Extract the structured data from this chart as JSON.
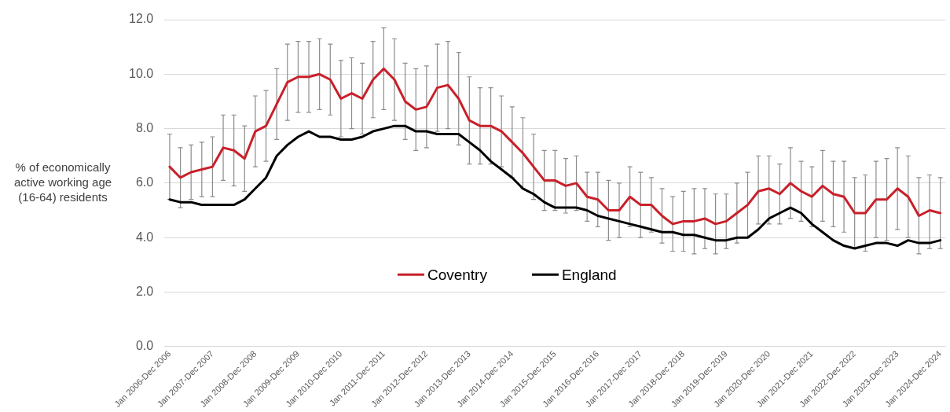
{
  "chart_data": {
    "type": "line",
    "ylabel": "% of economically active working age (16-64) residents",
    "categories": [
      "Jan 2006-Dec 2006",
      null,
      null,
      null,
      "Jan 2007-Dec 2007",
      null,
      null,
      null,
      "Jan 2008-Dec 2008",
      null,
      null,
      null,
      "Jan 2009-Dec 2009",
      null,
      null,
      null,
      "Jan 2010-Dec 2010",
      null,
      null,
      null,
      "Jan 2011-Dec 2011",
      null,
      null,
      null,
      "Jan 2012-Dec 2012",
      null,
      null,
      null,
      "Jan 2013-Dec 2013",
      null,
      null,
      null,
      "Jan 2014-Dec 2014",
      null,
      null,
      null,
      "Jan 2015-Dec 2015",
      null,
      null,
      null,
      "Jan 2016-Dec 2016",
      null,
      null,
      null,
      "Jan 2017-Dec 2017",
      null,
      null,
      null,
      "Jan 2018-Dec 2018",
      null,
      null,
      null,
      "Jan 2019-Dec 2019",
      null,
      null,
      null,
      "Jan 2020-Dec 2020",
      null,
      null,
      null,
      "Jan 2021-Dec 2021",
      null,
      null,
      null,
      "Jan 2022-Dec 2022",
      null,
      null,
      null,
      "Jan 2023-Dec 2023",
      null,
      null,
      null,
      "Jan 2024-Dec 2024"
    ],
    "series": [
      {
        "name": "Coventry",
        "color": "#c8202a",
        "values": [
          6.6,
          6.2,
          6.4,
          6.5,
          6.6,
          7.3,
          7.2,
          6.9,
          7.9,
          8.1,
          8.9,
          9.7,
          9.9,
          9.9,
          10.0,
          9.8,
          9.1,
          9.3,
          9.1,
          9.8,
          10.2,
          9.8,
          9.0,
          8.7,
          8.8,
          9.5,
          9.6,
          9.1,
          8.3,
          8.1,
          8.1,
          7.9,
          7.5,
          7.1,
          6.6,
          6.1,
          6.1,
          5.9,
          6.0,
          5.5,
          5.4,
          5.0,
          5.0,
          5.5,
          5.2,
          5.2,
          4.8,
          4.5,
          4.6,
          4.6,
          4.7,
          4.5,
          4.6,
          4.9,
          5.2,
          5.7,
          5.8,
          5.6,
          6.0,
          5.7,
          5.5,
          5.9,
          5.6,
          5.5,
          4.9,
          4.9,
          5.4,
          5.4,
          5.8,
          5.5,
          4.8,
          5.0,
          4.9
        ],
        "errors": [
          [
            5.4,
            7.8
          ],
          [
            5.1,
            7.3
          ],
          [
            5.4,
            7.4
          ],
          [
            5.5,
            7.5
          ],
          [
            5.5,
            7.7
          ],
          [
            6.1,
            8.5
          ],
          [
            5.9,
            8.5
          ],
          [
            5.7,
            8.1
          ],
          [
            6.6,
            9.2
          ],
          [
            6.8,
            9.4
          ],
          [
            7.6,
            10.2
          ],
          [
            8.3,
            11.1
          ],
          [
            8.6,
            11.2
          ],
          [
            8.6,
            11.2
          ],
          [
            8.7,
            11.3
          ],
          [
            8.5,
            11.1
          ],
          [
            7.7,
            10.5
          ],
          [
            8.0,
            10.6
          ],
          [
            7.8,
            10.4
          ],
          [
            8.4,
            11.2
          ],
          [
            8.7,
            11.7
          ],
          [
            8.3,
            11.3
          ],
          [
            7.6,
            10.4
          ],
          [
            7.2,
            10.2
          ],
          [
            7.3,
            10.3
          ],
          [
            7.9,
            11.1
          ],
          [
            8.0,
            11.2
          ],
          [
            7.4,
            10.8
          ],
          [
            6.7,
            9.9
          ],
          [
            6.7,
            9.5
          ],
          [
            6.7,
            9.5
          ],
          [
            6.6,
            9.2
          ],
          [
            6.2,
            8.8
          ],
          [
            5.8,
            8.4
          ],
          [
            5.4,
            7.8
          ],
          [
            5.0,
            7.2
          ],
          [
            5.0,
            7.2
          ],
          [
            4.9,
            6.9
          ],
          [
            5.0,
            7.0
          ],
          [
            4.6,
            6.4
          ],
          [
            4.4,
            6.4
          ],
          [
            3.9,
            6.1
          ],
          [
            4.0,
            6.0
          ],
          [
            4.4,
            6.6
          ],
          [
            4.0,
            6.4
          ],
          [
            4.2,
            6.2
          ],
          [
            3.8,
            5.8
          ],
          [
            3.5,
            5.5
          ],
          [
            3.5,
            5.7
          ],
          [
            3.4,
            5.8
          ],
          [
            3.6,
            5.8
          ],
          [
            3.4,
            5.6
          ],
          [
            3.6,
            5.6
          ],
          [
            3.8,
            6.0
          ],
          [
            4.0,
            6.4
          ],
          [
            4.5,
            7.0
          ],
          [
            4.5,
            7.0
          ],
          [
            4.5,
            6.7
          ],
          [
            4.7,
            7.3
          ],
          [
            4.6,
            6.8
          ],
          [
            4.4,
            6.6
          ],
          [
            4.6,
            7.2
          ],
          [
            4.4,
            6.8
          ],
          [
            4.2,
            6.8
          ],
          [
            3.6,
            6.2
          ],
          [
            3.5,
            6.3
          ],
          [
            4.0,
            6.8
          ],
          [
            3.9,
            6.9
          ],
          [
            4.3,
            7.3
          ],
          [
            4.0,
            7.0
          ],
          [
            3.4,
            6.2
          ],
          [
            3.6,
            6.3
          ],
          [
            3.6,
            6.2
          ]
        ]
      },
      {
        "name": "England",
        "color": "#000000",
        "values": [
          5.4,
          5.3,
          5.3,
          5.2,
          5.2,
          5.2,
          5.2,
          5.4,
          5.8,
          6.2,
          7.0,
          7.4,
          7.7,
          7.9,
          7.7,
          7.7,
          7.6,
          7.6,
          7.7,
          7.9,
          8.0,
          8.1,
          8.1,
          7.9,
          7.9,
          7.8,
          7.8,
          7.8,
          7.5,
          7.2,
          6.8,
          6.5,
          6.2,
          5.8,
          5.6,
          5.3,
          5.1,
          5.1,
          5.1,
          5.0,
          4.8,
          4.7,
          4.6,
          4.5,
          4.4,
          4.3,
          4.2,
          4.2,
          4.1,
          4.1,
          4.0,
          3.9,
          3.9,
          4.0,
          4.0,
          4.3,
          4.7,
          4.9,
          5.1,
          4.9,
          4.5,
          4.2,
          3.9,
          3.7,
          3.6,
          3.7,
          3.8,
          3.8,
          3.7,
          3.9,
          3.8,
          3.8,
          3.9
        ]
      }
    ],
    "ylim": [
      0,
      12
    ],
    "yticks": [
      {
        "value": 0,
        "label": "0.0"
      },
      {
        "value": 2,
        "label": "2.0"
      },
      {
        "value": 4,
        "label": "4.0"
      },
      {
        "value": 6,
        "label": "6.0"
      },
      {
        "value": 8,
        "label": "8.0"
      },
      {
        "value": 10,
        "label": "10.0"
      },
      {
        "value": 12,
        "label": "12.0"
      }
    ],
    "grid": "y",
    "legend": "bottom",
    "marker": "none",
    "line_style": "solid"
  }
}
